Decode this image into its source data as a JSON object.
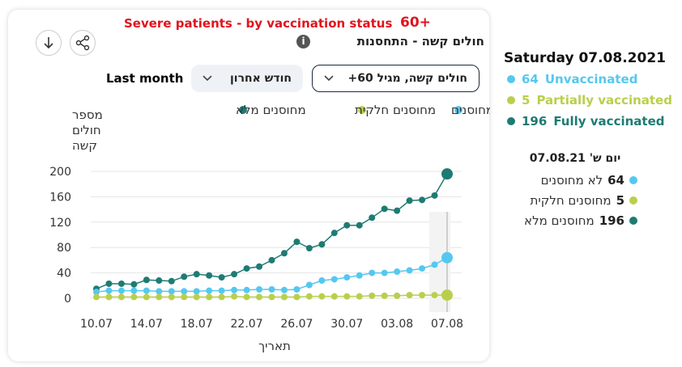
{
  "header": {
    "title_en": "Severe patients - by vaccination status",
    "age_en": "60+",
    "title_he": "חולים קשה - התחסנות",
    "info_icon": "i"
  },
  "controls": {
    "period_label": "Last month",
    "period_select": "חודש אחרון",
    "metric_select": "חולים קשה, מגיל 60+"
  },
  "chart_data": {
    "type": "line",
    "y_label": [
      "מספר",
      "חולים",
      "קשה"
    ],
    "x_label": "תאריך",
    "categories": [
      "10.07",
      null,
      null,
      null,
      "14.07",
      null,
      null,
      null,
      "18.07",
      null,
      null,
      null,
      "22.07",
      null,
      null,
      null,
      "26.07",
      null,
      null,
      null,
      "30.07",
      null,
      null,
      null,
      "03.08",
      null,
      null,
      null,
      "07.08"
    ],
    "series": [
      {
        "name": "לא מחוסנים",
        "color": "#55c8ef",
        "values": [
          10,
          12,
          12,
          12,
          12,
          11,
          11,
          11,
          11,
          12,
          12,
          13,
          13,
          14,
          14,
          13,
          14,
          21,
          28,
          30,
          33,
          36,
          40,
          40,
          42,
          44,
          47,
          53,
          64
        ]
      },
      {
        "name": "מחוסנים חלקית",
        "color": "#b9cf4c",
        "values": [
          2,
          2,
          2,
          2,
          2,
          2,
          2,
          2,
          2,
          2,
          2,
          3,
          2,
          2,
          2,
          2,
          2,
          3,
          3,
          3,
          3,
          3,
          4,
          4,
          4,
          5,
          5,
          5,
          5
        ]
      },
      {
        "name": "מחוסנים מלא",
        "color": "#1e7b73",
        "values": [
          15,
          23,
          23,
          22,
          29,
          28,
          27,
          34,
          38,
          36,
          33,
          38,
          47,
          50,
          60,
          71,
          89,
          79,
          85,
          103,
          115,
          115,
          127,
          141,
          138,
          154,
          155,
          162,
          196
        ]
      }
    ],
    "ylim": [
      0,
      200
    ],
    "yticks": [
      0,
      40,
      80,
      120,
      160,
      200
    ],
    "grid": true
  },
  "side_panel": {
    "date": "Saturday 07.08.2021",
    "labels": [
      "Unvaccinated",
      "Partially vaccinated",
      "Fully vaccinated"
    ]
  },
  "tooltip": {
    "date": "יום ש' 07.08.21"
  }
}
